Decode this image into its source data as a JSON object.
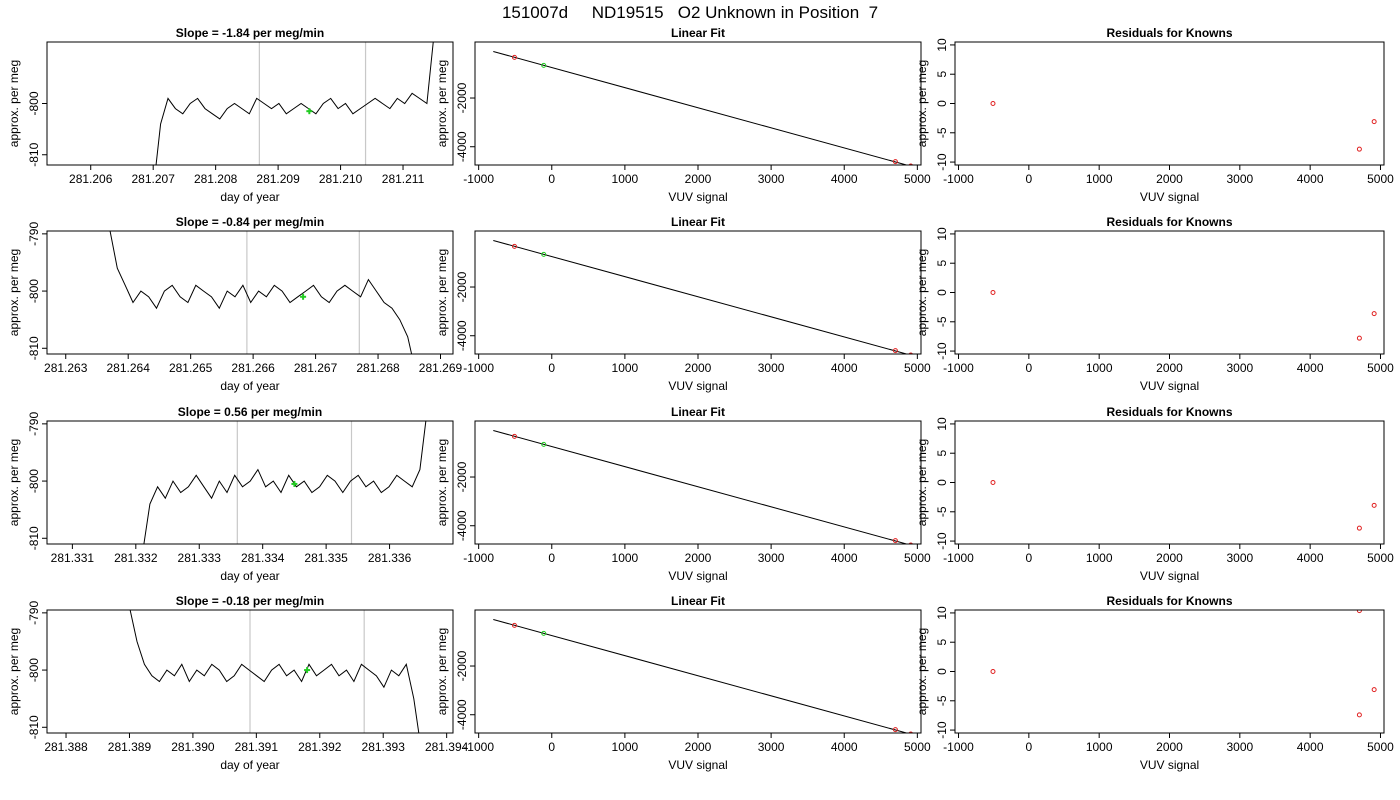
{
  "figure": {
    "title": "151007d     ND19515   O2 Unknown in Position  7"
  },
  "chart_data": [
    {
      "type": "line",
      "title": "Slope =  -1.84  per meg/min",
      "xlabel": "day of year",
      "ylabel": "approx. per meg",
      "xlim": [
        281.2053,
        281.2118
      ],
      "ylim": [
        -812,
        -788
      ],
      "xticks": [
        "281.206",
        "281.207",
        "281.208",
        "281.209",
        "281.210",
        "281.211"
      ],
      "yticks": [
        "-810",
        "-800"
      ],
      "vlines": [
        281.2087,
        281.2104
      ],
      "trace_x": [
        281.207,
        281.2115
      ],
      "trace_y": [
        -817,
        -804,
        -799,
        -801,
        -802,
        -800,
        -799,
        -801,
        -802,
        -803,
        -801,
        -800,
        -801,
        -802,
        -799,
        -800,
        -801,
        -800,
        -802,
        -801,
        -800,
        -801,
        -802,
        -800,
        -799,
        -801,
        -800,
        -802,
        -801,
        -800,
        -799,
        -800,
        -801,
        -799,
        -800,
        -798,
        -799,
        -800,
        -786
      ],
      "highlight": {
        "x": 281.2095,
        "y": -801.5
      }
    },
    {
      "type": "scatter",
      "title": "Linear Fit",
      "xlabel": "VUV signal",
      "ylabel": "approx. per meg",
      "xlim": [
        -1050,
        5050
      ],
      "ylim": [
        -4750,
        300
      ],
      "xticks": [
        "-1000",
        "0",
        "1000",
        "2000",
        "3000",
        "4000",
        "5000"
      ],
      "yticks": [
        "-4000",
        "-2000"
      ],
      "line": {
        "x": [
          -800,
          4900
        ],
        "y": [
          -90,
          -4790
        ]
      },
      "points": [
        {
          "x": -510,
          "y": -330,
          "color": "red"
        },
        {
          "x": -110,
          "y": -660,
          "color": "green"
        },
        {
          "x": 4700,
          "y": -4610,
          "color": "red"
        },
        {
          "x": 4910,
          "y": -4790,
          "color": "red"
        }
      ]
    },
    {
      "type": "scatter",
      "title": "Residuals for Knowns",
      "xlabel": "VUV signal",
      "ylabel": "approx. per meg",
      "xlim": [
        -1050,
        5050
      ],
      "ylim": [
        -10.5,
        10.5
      ],
      "xticks": [
        "-1000",
        "0",
        "1000",
        "2000",
        "3000",
        "4000",
        "5000"
      ],
      "yticks": [
        "-10",
        "-5",
        "0",
        "5",
        "10"
      ],
      "points": [
        {
          "x": -510,
          "y": 0
        },
        {
          "x": 4700,
          "y": -7.8
        },
        {
          "x": 4910,
          "y": -3.1
        }
      ]
    },
    {
      "type": "line",
      "title": "Slope =  -0.84  per meg/min",
      "xlabel": "day of year",
      "ylabel": "approx. per meg",
      "xlim": [
        281.2627,
        281.2692
      ],
      "ylim": [
        -811,
        -789.5
      ],
      "xticks": [
        "281.263",
        "281.264",
        "281.265",
        "281.266",
        "281.267",
        "281.268",
        "281.269"
      ],
      "yticks": [
        "-810",
        "-800",
        "-790"
      ],
      "vlines": [
        281.2659,
        281.2677
      ],
      "trace_x": [
        281.2637,
        281.2686
      ],
      "trace_y": [
        -789,
        -796,
        -799,
        -802,
        -800,
        -801,
        -803,
        -800,
        -799,
        -801,
        -802,
        -799,
        -800,
        -801,
        -803,
        -800,
        -801,
        -799,
        -802,
        -800,
        -801,
        -799,
        -800,
        -802,
        -801,
        -800,
        -799,
        -801,
        -802,
        -800,
        -799,
        -800,
        -801,
        -798,
        -800,
        -802,
        -803,
        -805,
        -808,
        -814
      ],
      "highlight": {
        "x": 281.2668,
        "y": -801
      }
    },
    {
      "type": "scatter",
      "title": "Linear Fit",
      "xlabel": "VUV signal",
      "ylabel": "approx. per meg",
      "xlim": [
        -1050,
        5050
      ],
      "ylim": [
        -4750,
        300
      ],
      "xticks": [
        "-1000",
        "0",
        "1000",
        "2000",
        "3000",
        "4000",
        "5000"
      ],
      "yticks": [
        "-4000",
        "-2000"
      ],
      "line": {
        "x": [
          -800,
          4900
        ],
        "y": [
          -90,
          -4790
        ]
      },
      "points": [
        {
          "x": -510,
          "y": -330,
          "color": "red"
        },
        {
          "x": -110,
          "y": -660,
          "color": "green"
        },
        {
          "x": 4700,
          "y": -4610,
          "color": "red"
        },
        {
          "x": 4910,
          "y": -4790,
          "color": "red"
        }
      ]
    },
    {
      "type": "scatter",
      "title": "Residuals for Knowns",
      "xlabel": "VUV signal",
      "ylabel": "approx. per meg",
      "xlim": [
        -1050,
        5050
      ],
      "ylim": [
        -10.5,
        10.5
      ],
      "xticks": [
        "-1000",
        "0",
        "1000",
        "2000",
        "3000",
        "4000",
        "5000"
      ],
      "yticks": [
        "-10",
        "-5",
        "0",
        "5",
        "10"
      ],
      "points": [
        {
          "x": -510,
          "y": 0
        },
        {
          "x": 4700,
          "y": -7.8
        },
        {
          "x": 4910,
          "y": -3.6
        }
      ]
    },
    {
      "type": "line",
      "title": "Slope =  0.56  per meg/min",
      "xlabel": "day of year",
      "ylabel": "approx. per meg",
      "xlim": [
        281.3306,
        281.337
      ],
      "ylim": [
        -811,
        -789.5
      ],
      "xticks": [
        "281.331",
        "281.332",
        "281.333",
        "281.334",
        "281.335",
        "281.336"
      ],
      "yticks": [
        "-810",
        "-800",
        "-790"
      ],
      "vlines": [
        281.3336,
        281.3354
      ],
      "trace_x": [
        281.3321,
        281.3366
      ],
      "trace_y": [
        -813,
        -804,
        -801,
        -803,
        -800,
        -802,
        -801,
        -799,
        -801,
        -803,
        -800,
        -802,
        -799,
        -801,
        -800,
        -798,
        -801,
        -800,
        -802,
        -799,
        -801,
        -800,
        -802,
        -801,
        -799,
        -800,
        -802,
        -800,
        -799,
        -801,
        -800,
        -802,
        -801,
        -799,
        -800,
        -801,
        -798,
        -787
      ],
      "highlight": {
        "x": 281.3345,
        "y": -800.5
      }
    },
    {
      "type": "scatter",
      "title": "Linear Fit",
      "xlabel": "VUV signal",
      "ylabel": "approx. per meg",
      "xlim": [
        -1050,
        5050
      ],
      "ylim": [
        -4750,
        300
      ],
      "xticks": [
        "-1000",
        "0",
        "1000",
        "2000",
        "3000",
        "4000",
        "5000"
      ],
      "yticks": [
        "-4000",
        "-2000"
      ],
      "line": {
        "x": [
          -800,
          4900
        ],
        "y": [
          -90,
          -4790
        ]
      },
      "points": [
        {
          "x": -510,
          "y": -330,
          "color": "red"
        },
        {
          "x": -110,
          "y": -660,
          "color": "green"
        },
        {
          "x": 4700,
          "y": -4610,
          "color": "red"
        },
        {
          "x": 4910,
          "y": -4790,
          "color": "red"
        }
      ]
    },
    {
      "type": "scatter",
      "title": "Residuals for Knowns",
      "xlabel": "VUV signal",
      "ylabel": "approx. per meg",
      "xlim": [
        -1050,
        5050
      ],
      "ylim": [
        -10.5,
        10.5
      ],
      "xticks": [
        "-1000",
        "0",
        "1000",
        "2000",
        "3000",
        "4000",
        "5000"
      ],
      "yticks": [
        "-10",
        "-5",
        "0",
        "5",
        "10"
      ],
      "points": [
        {
          "x": -510,
          "y": 0
        },
        {
          "x": 4700,
          "y": -7.8
        },
        {
          "x": 4910,
          "y": -3.9
        }
      ]
    },
    {
      "type": "line",
      "title": "Slope =  -0.18  per meg/min",
      "xlabel": "day of year",
      "ylabel": "approx. per meg",
      "xlim": [
        281.3877,
        281.3941
      ],
      "ylim": [
        -811,
        -789.5
      ],
      "xticks": [
        "281.388",
        "281.389",
        "281.390",
        "281.391",
        "281.392",
        "281.393",
        "281.394"
      ],
      "yticks": [
        "-810",
        "-800",
        "-790"
      ],
      "vlines": [
        281.3909,
        281.3927
      ],
      "trace_x": [
        281.389,
        281.3936
      ],
      "trace_y": [
        -789,
        -795,
        -799,
        -801,
        -802,
        -800,
        -801,
        -799,
        -802,
        -800,
        -801,
        -799,
        -800,
        -802,
        -801,
        -799,
        -800,
        -801,
        -802,
        -800,
        -799,
        -801,
        -800,
        -802,
        -799,
        -801,
        -800,
        -799,
        -801,
        -800,
        -802,
        -799,
        -800,
        -801,
        -803,
        -800,
        -801,
        -799,
        -805,
        -814
      ],
      "highlight": {
        "x": 281.3918,
        "y": -800
      }
    },
    {
      "type": "scatter",
      "title": "Linear Fit",
      "xlabel": "VUV signal",
      "ylabel": "approx. per meg",
      "xlim": [
        -1050,
        5050
      ],
      "ylim": [
        -4750,
        300
      ],
      "xticks": [
        "-1000",
        "0",
        "1000",
        "2000",
        "3000",
        "4000",
        "5000"
      ],
      "yticks": [
        "-4000",
        "-2000"
      ],
      "line": {
        "x": [
          -800,
          4900
        ],
        "y": [
          -90,
          -4790
        ]
      },
      "points": [
        {
          "x": -510,
          "y": -330,
          "color": "red"
        },
        {
          "x": -110,
          "y": -660,
          "color": "green"
        },
        {
          "x": 4700,
          "y": -4610,
          "color": "red"
        },
        {
          "x": 4910,
          "y": -4790,
          "color": "red"
        }
      ]
    },
    {
      "type": "scatter",
      "title": "Residuals for Knowns",
      "xlabel": "VUV signal",
      "ylabel": "approx. per meg",
      "xlim": [
        -1050,
        5050
      ],
      "ylim": [
        -10.5,
        10.5
      ],
      "xticks": [
        "-1000",
        "0",
        "1000",
        "2000",
        "3000",
        "4000",
        "5000"
      ],
      "yticks": [
        "-10",
        "-5",
        "0",
        "5",
        "10"
      ],
      "points": [
        {
          "x": -510,
          "y": 0
        },
        {
          "x": 4700,
          "y": -7.4
        },
        {
          "x": 4910,
          "y": -3.1
        },
        {
          "x": 4700,
          "y": 10.4
        }
      ]
    }
  ]
}
